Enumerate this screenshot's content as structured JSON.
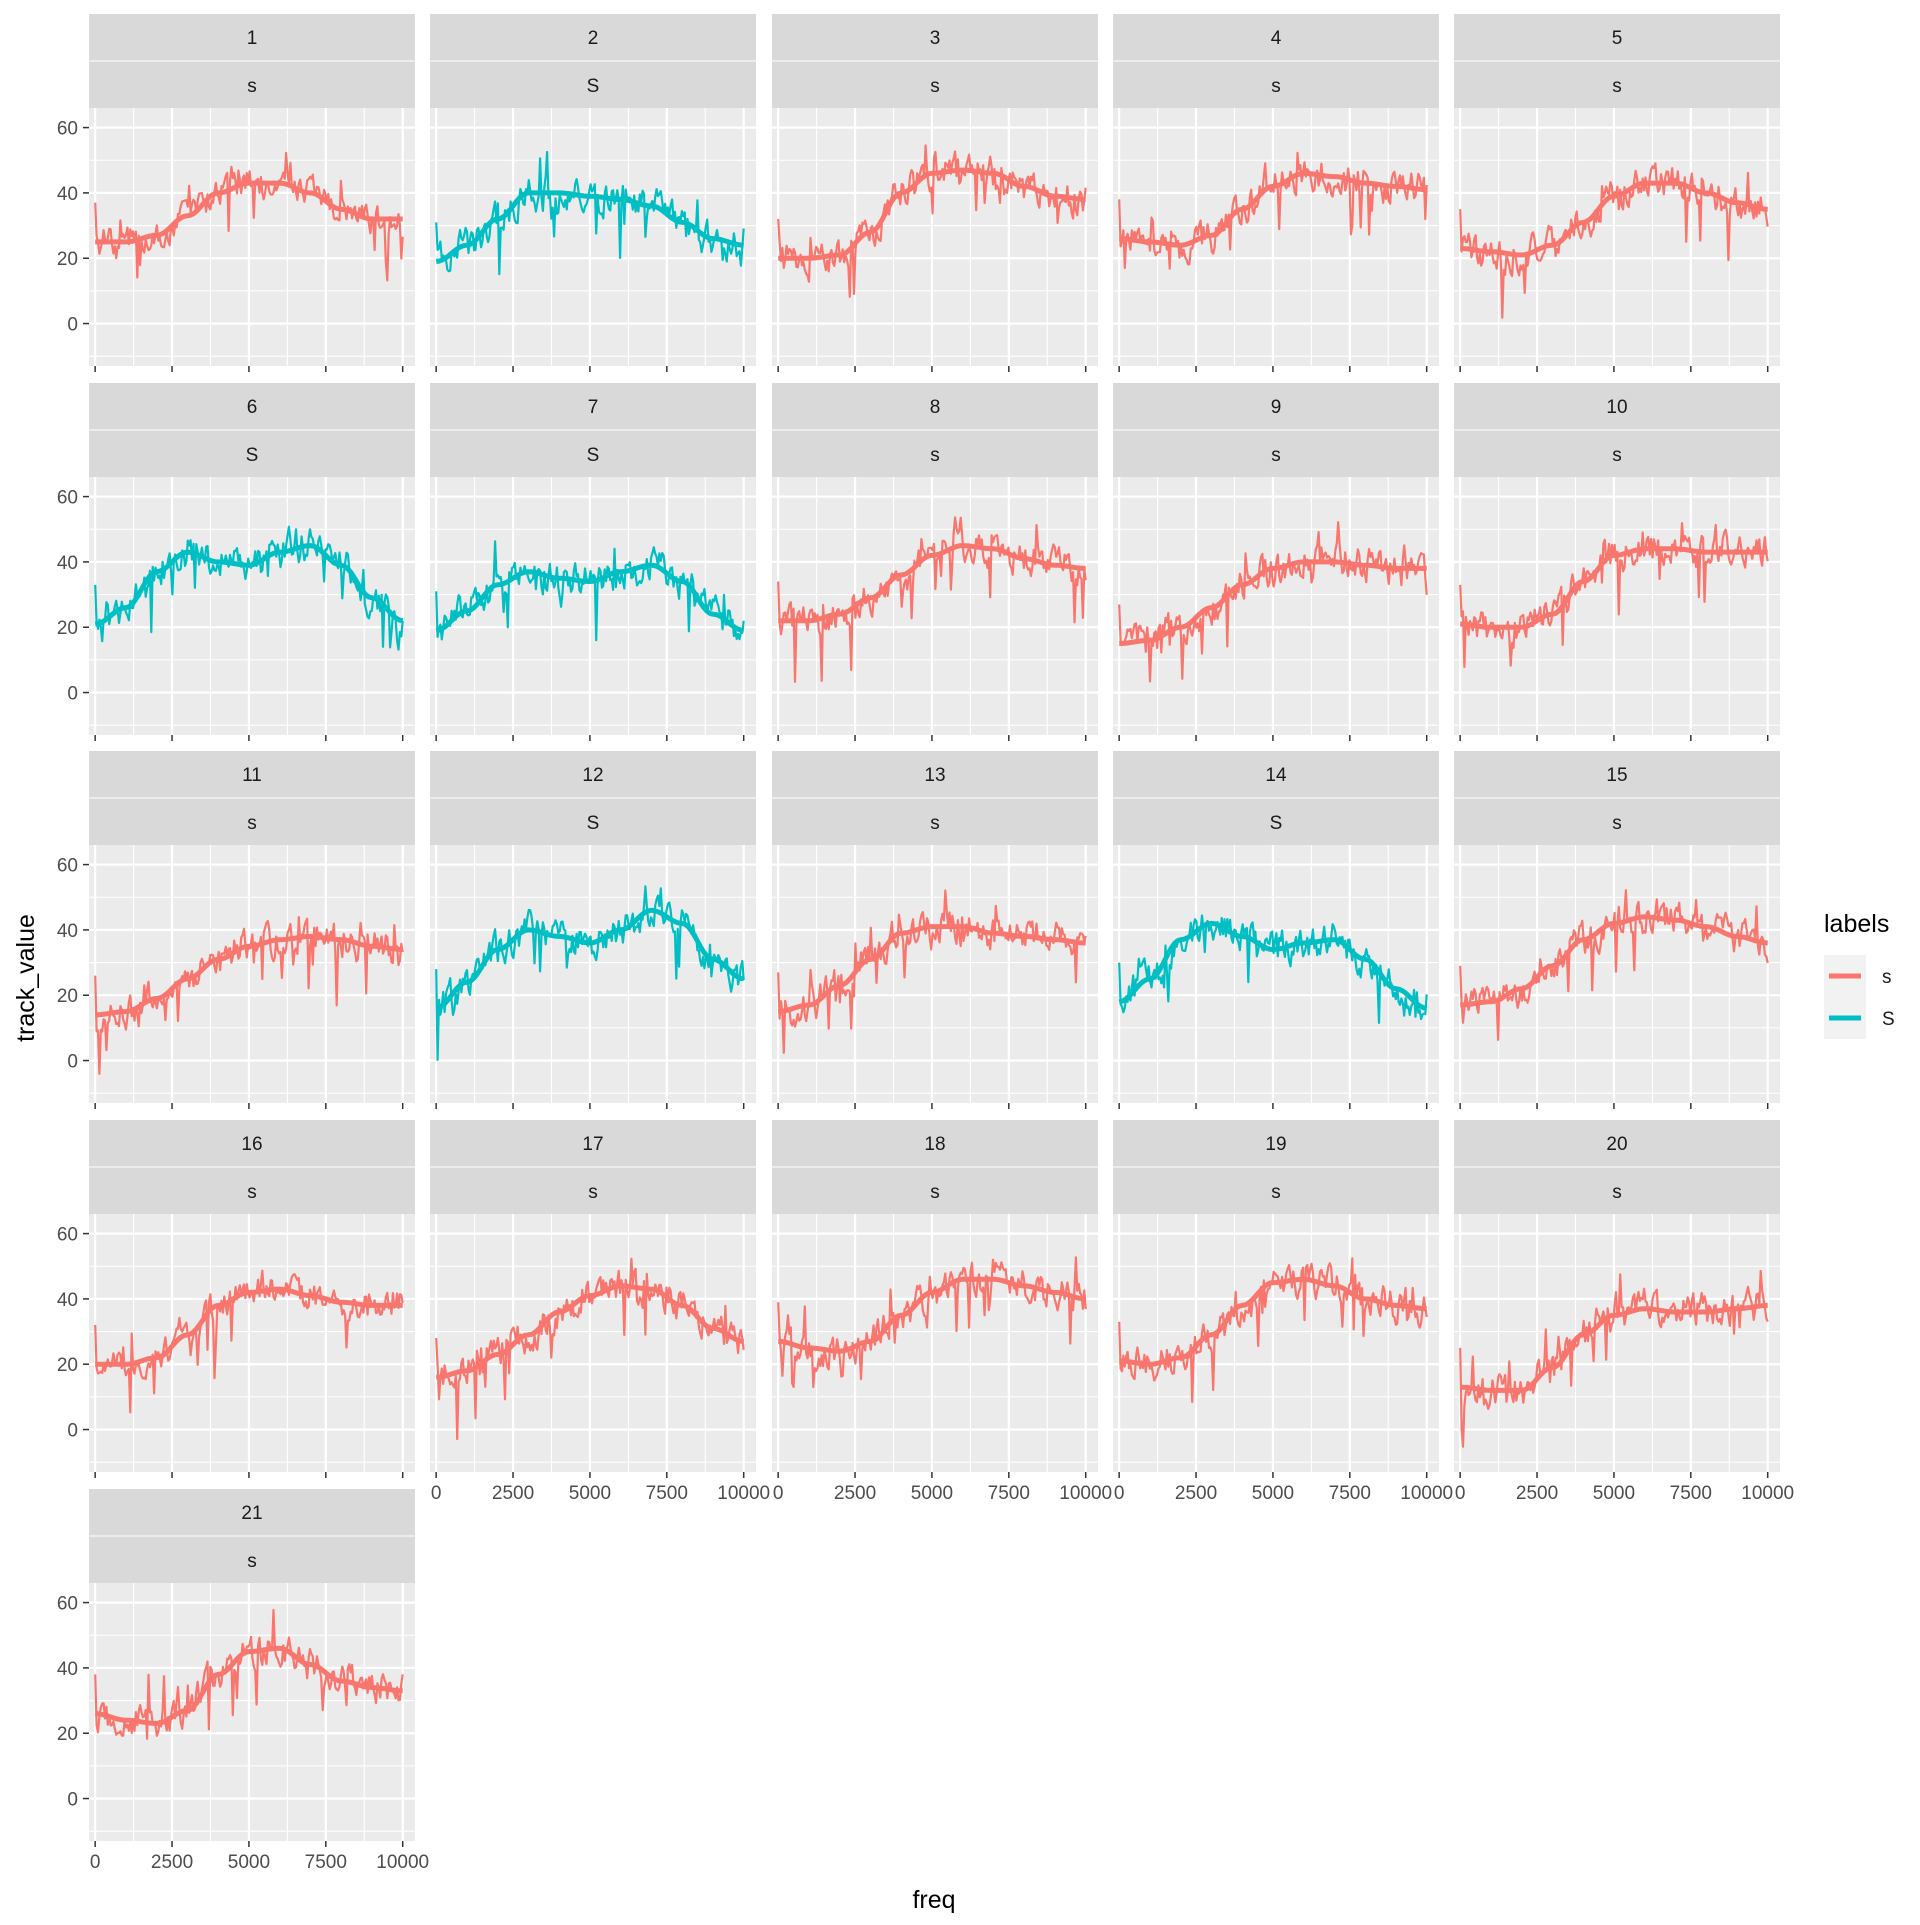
{
  "chart_data": {
    "type": "line",
    "facet_layout": "wrap, 5 columns, two-line strips (id / label)",
    "xlabel": "freq",
    "ylabel": "track_value",
    "xlim": [
      -200,
      10400
    ],
    "ylim": [
      -13,
      66
    ],
    "x_ticks": [
      0,
      2500,
      5000,
      7500,
      10000
    ],
    "y_ticks": [
      0,
      20,
      40,
      60
    ],
    "legend": {
      "title": "labels",
      "position": "right",
      "entries": [
        {
          "label": "s",
          "color": "#F8766D"
        },
        {
          "label": "S",
          "color": "#00BFC4"
        }
      ]
    },
    "smooth_x": [
      0,
      1000,
      2000,
      3000,
      4000,
      5000,
      6000,
      7000,
      8000,
      9000,
      10000
    ],
    "panels": [
      {
        "id": "1",
        "label": "s",
        "smooth": [
          25,
          25,
          27,
          33,
          40,
          43,
          43,
          40,
          35,
          32,
          32
        ],
        "noise": 7
      },
      {
        "id": "2",
        "label": "S",
        "smooth": [
          19,
          24,
          32,
          40,
          40,
          39,
          38,
          36,
          31,
          26,
          24
        ],
        "noise": 8
      },
      {
        "id": "3",
        "label": "s",
        "smooth": [
          20,
          20,
          21,
          28,
          40,
          46,
          47,
          46,
          42,
          39,
          38
        ],
        "noise": 8
      },
      {
        "id": "4",
        "label": "s",
        "smooth": [
          26,
          25,
          24,
          27,
          35,
          42,
          46,
          45,
          43,
          42,
          41
        ],
        "noise": 8
      },
      {
        "id": "5",
        "label": "s",
        "smooth": [
          23,
          22,
          21,
          24,
          31,
          39,
          43,
          43,
          40,
          37,
          35
        ],
        "noise": 8
      },
      {
        "id": "6",
        "label": "S",
        "smooth": [
          21,
          26,
          37,
          43,
          40,
          39,
          43,
          45,
          39,
          29,
          22
        ],
        "noise": 8
      },
      {
        "id": "7",
        "label": "S",
        "smooth": [
          19,
          25,
          33,
          37,
          35,
          34,
          37,
          39,
          34,
          24,
          19
        ],
        "noise": 8
      },
      {
        "id": "8",
        "label": "s",
        "smooth": [
          22,
          22,
          24,
          29,
          36,
          42,
          45,
          44,
          41,
          39,
          38
        ],
        "noise": 8
      },
      {
        "id": "9",
        "label": "s",
        "smooth": [
          15,
          16,
          20,
          26,
          33,
          38,
          40,
          40,
          39,
          38,
          38
        ],
        "noise": 8
      },
      {
        "id": "10",
        "label": "s",
        "smooth": [
          21,
          20,
          20,
          24,
          34,
          42,
          44,
          44,
          43,
          43,
          43
        ],
        "noise": 8
      },
      {
        "id": "11",
        "label": "s",
        "smooth": [
          14,
          15,
          19,
          25,
          31,
          35,
          37,
          38,
          37,
          35,
          34
        ],
        "noise": 8
      },
      {
        "id": "12",
        "label": "S",
        "smooth": [
          16,
          24,
          34,
          40,
          38,
          36,
          40,
          46,
          42,
          31,
          25
        ],
        "noise": 8
      },
      {
        "id": "13",
        "label": "s",
        "smooth": [
          15,
          17,
          23,
          31,
          39,
          41,
          41,
          39,
          38,
          37,
          36
        ],
        "noise": 8
      },
      {
        "id": "14",
        "label": "S",
        "smooth": [
          18,
          25,
          37,
          42,
          38,
          34,
          36,
          37,
          31,
          22,
          16
        ],
        "noise": 8
      },
      {
        "id": "15",
        "label": "s",
        "smooth": [
          17,
          18,
          22,
          29,
          37,
          42,
          44,
          43,
          41,
          38,
          36
        ],
        "noise": 8
      },
      {
        "id": "16",
        "label": "s",
        "smooth": [
          20,
          20,
          22,
          29,
          38,
          42,
          43,
          41,
          39,
          38,
          38
        ],
        "noise": 7
      },
      {
        "id": "17",
        "label": "s",
        "smooth": [
          16,
          18,
          23,
          29,
          36,
          41,
          44,
          43,
          38,
          31,
          27
        ],
        "noise": 8
      },
      {
        "id": "18",
        "label": "s",
        "smooth": [
          27,
          25,
          24,
          27,
          35,
          42,
          46,
          46,
          44,
          42,
          40
        ],
        "noise": 8
      },
      {
        "id": "19",
        "label": "s",
        "smooth": [
          21,
          20,
          22,
          29,
          38,
          45,
          46,
          44,
          40,
          38,
          37
        ],
        "noise": 8
      },
      {
        "id": "20",
        "label": "s",
        "smooth": [
          13,
          12,
          12,
          19,
          29,
          35,
          37,
          36,
          36,
          37,
          38
        ],
        "noise": 8
      },
      {
        "id": "21",
        "label": "s",
        "smooth": [
          26,
          24,
          23,
          27,
          38,
          45,
          46,
          41,
          36,
          34,
          33
        ],
        "noise": 8
      }
    ]
  }
}
